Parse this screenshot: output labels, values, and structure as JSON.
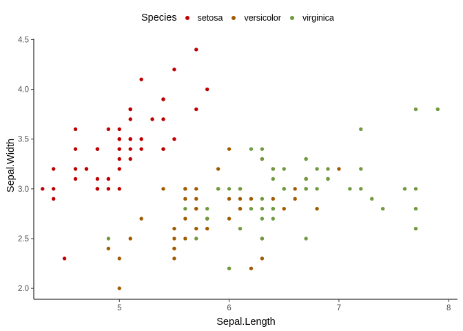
{
  "chart_data": {
    "type": "scatter",
    "title": "",
    "xlabel": "Sepal.Length",
    "ylabel": "Sepal.Width",
    "xlim": [
      4.22,
      8.08
    ],
    "ylim": [
      1.89,
      4.51
    ],
    "xticks": [
      5,
      6,
      7,
      8
    ],
    "yticks": [
      2.0,
      2.5,
      3.0,
      3.5,
      4.0,
      4.5
    ],
    "xtick_labels": [
      "5",
      "6",
      "7",
      "8"
    ],
    "ytick_labels": [
      "2.0",
      "2.5",
      "3.0",
      "3.5",
      "4.0",
      "4.5"
    ],
    "grid": false,
    "legend": {
      "title": "Species",
      "position": "top"
    },
    "series": [
      {
        "name": "setosa",
        "color": "#c00000",
        "points": [
          [
            5.1,
            3.5
          ],
          [
            4.9,
            3.0
          ],
          [
            4.7,
            3.2
          ],
          [
            4.6,
            3.1
          ],
          [
            5.0,
            3.6
          ],
          [
            5.4,
            3.9
          ],
          [
            4.6,
            3.4
          ],
          [
            5.0,
            3.4
          ],
          [
            4.4,
            2.9
          ],
          [
            4.9,
            3.1
          ],
          [
            5.4,
            3.7
          ],
          [
            4.8,
            3.4
          ],
          [
            4.8,
            3.0
          ],
          [
            4.3,
            3.0
          ],
          [
            5.8,
            4.0
          ],
          [
            5.7,
            4.4
          ],
          [
            5.4,
            3.9
          ],
          [
            5.1,
            3.5
          ],
          [
            5.7,
            3.8
          ],
          [
            5.1,
            3.8
          ],
          [
            5.4,
            3.4
          ],
          [
            5.1,
            3.7
          ],
          [
            4.6,
            3.6
          ],
          [
            5.1,
            3.3
          ],
          [
            4.8,
            3.4
          ],
          [
            5.0,
            3.0
          ],
          [
            5.0,
            3.4
          ],
          [
            5.2,
            3.5
          ],
          [
            5.2,
            3.4
          ],
          [
            4.7,
            3.2
          ],
          [
            4.8,
            3.1
          ],
          [
            5.4,
            3.4
          ],
          [
            5.2,
            4.1
          ],
          [
            5.5,
            4.2
          ],
          [
            4.9,
            3.1
          ],
          [
            5.0,
            3.2
          ],
          [
            5.5,
            3.5
          ],
          [
            4.9,
            3.6
          ],
          [
            4.4,
            3.0
          ],
          [
            5.1,
            3.4
          ],
          [
            5.0,
            3.5
          ],
          [
            4.5,
            2.3
          ],
          [
            4.4,
            3.2
          ],
          [
            5.0,
            3.5
          ],
          [
            5.1,
            3.8
          ],
          [
            4.8,
            3.0
          ],
          [
            5.1,
            3.8
          ],
          [
            4.6,
            3.2
          ],
          [
            5.3,
            3.7
          ],
          [
            5.0,
            3.3
          ]
        ]
      },
      {
        "name": "versicolor",
        "color": "#a05a00",
        "points": [
          [
            7.0,
            3.2
          ],
          [
            6.4,
            3.2
          ],
          [
            6.9,
            3.1
          ],
          [
            5.5,
            2.3
          ],
          [
            6.5,
            2.8
          ],
          [
            5.7,
            2.8
          ],
          [
            6.3,
            3.3
          ],
          [
            4.9,
            2.4
          ],
          [
            6.6,
            2.9
          ],
          [
            5.2,
            2.7
          ],
          [
            5.0,
            2.0
          ],
          [
            5.9,
            3.0
          ],
          [
            6.0,
            2.2
          ],
          [
            6.1,
            2.9
          ],
          [
            5.6,
            2.9
          ],
          [
            6.7,
            3.1
          ],
          [
            5.6,
            3.0
          ],
          [
            5.8,
            2.7
          ],
          [
            6.2,
            2.2
          ],
          [
            5.6,
            2.5
          ],
          [
            5.9,
            3.2
          ],
          [
            6.1,
            2.8
          ],
          [
            6.3,
            2.5
          ],
          [
            6.1,
            2.8
          ],
          [
            6.4,
            2.9
          ],
          [
            6.6,
            3.0
          ],
          [
            6.8,
            2.8
          ],
          [
            6.7,
            3.0
          ],
          [
            6.0,
            2.9
          ],
          [
            5.7,
            2.6
          ],
          [
            5.5,
            2.4
          ],
          [
            5.5,
            2.4
          ],
          [
            5.8,
            2.7
          ],
          [
            6.0,
            2.7
          ],
          [
            5.4,
            3.0
          ],
          [
            6.0,
            3.4
          ],
          [
            6.7,
            3.1
          ],
          [
            6.3,
            2.3
          ],
          [
            5.6,
            3.0
          ],
          [
            5.5,
            2.5
          ],
          [
            5.5,
            2.6
          ],
          [
            6.1,
            3.0
          ],
          [
            5.8,
            2.6
          ],
          [
            5.0,
            2.3
          ],
          [
            5.6,
            2.7
          ],
          [
            5.7,
            3.0
          ],
          [
            5.7,
            2.9
          ],
          [
            6.2,
            2.9
          ],
          [
            5.1,
            2.5
          ],
          [
            5.7,
            2.8
          ]
        ]
      },
      {
        "name": "virginica",
        "color": "#6f9a3e",
        "points": [
          [
            6.3,
            3.3
          ],
          [
            5.8,
            2.7
          ],
          [
            7.1,
            3.0
          ],
          [
            6.3,
            2.9
          ],
          [
            6.5,
            3.0
          ],
          [
            7.6,
            3.0
          ],
          [
            4.9,
            2.5
          ],
          [
            7.3,
            2.9
          ],
          [
            6.7,
            2.5
          ],
          [
            7.2,
            3.6
          ],
          [
            6.5,
            3.2
          ],
          [
            6.4,
            2.7
          ],
          [
            6.8,
            3.0
          ],
          [
            5.7,
            2.5
          ],
          [
            5.8,
            2.8
          ],
          [
            6.4,
            3.2
          ],
          [
            6.5,
            3.0
          ],
          [
            7.7,
            3.8
          ],
          [
            7.7,
            2.6
          ],
          [
            6.0,
            2.2
          ],
          [
            6.9,
            3.2
          ],
          [
            5.6,
            2.8
          ],
          [
            7.7,
            2.8
          ],
          [
            6.3,
            2.7
          ],
          [
            6.7,
            3.3
          ],
          [
            7.2,
            3.2
          ],
          [
            6.2,
            2.8
          ],
          [
            6.1,
            3.0
          ],
          [
            6.4,
            2.8
          ],
          [
            7.2,
            3.0
          ],
          [
            7.4,
            2.8
          ],
          [
            7.9,
            3.8
          ],
          [
            6.4,
            2.8
          ],
          [
            6.3,
            2.8
          ],
          [
            6.1,
            2.6
          ],
          [
            7.7,
            3.0
          ],
          [
            6.3,
            3.4
          ],
          [
            6.4,
            3.1
          ],
          [
            6.0,
            3.0
          ],
          [
            6.9,
            3.1
          ],
          [
            6.7,
            3.1
          ],
          [
            6.9,
            3.1
          ],
          [
            5.8,
            2.7
          ],
          [
            6.8,
            3.2
          ],
          [
            6.7,
            3.3
          ],
          [
            6.7,
            3.0
          ],
          [
            6.3,
            2.5
          ],
          [
            6.5,
            3.0
          ],
          [
            6.2,
            3.4
          ],
          [
            5.9,
            3.0
          ]
        ]
      }
    ]
  }
}
